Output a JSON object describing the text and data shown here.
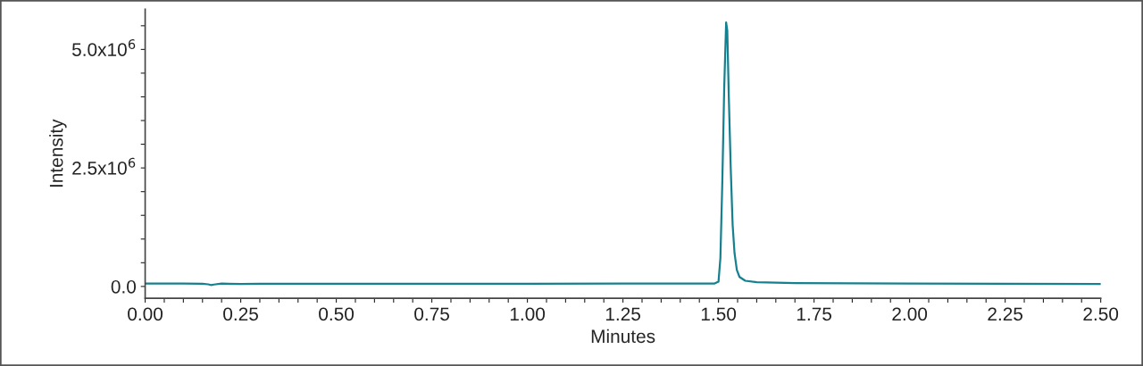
{
  "chart_data": {
    "type": "line",
    "xlabel": "Minutes",
    "ylabel": "Intensity",
    "x": [
      0.0,
      0.05,
      0.1,
      0.15,
      0.165,
      0.172,
      0.18,
      0.2,
      0.25,
      0.3,
      0.5,
      0.75,
      1.0,
      1.25,
      1.45,
      1.49,
      1.5,
      1.505,
      1.51,
      1.515,
      1.52,
      1.523,
      1.527,
      1.532,
      1.537,
      1.542,
      1.548,
      1.555,
      1.57,
      1.6,
      1.7,
      2.0,
      2.25,
      2.5
    ],
    "series": [
      {
        "color": "#15808f",
        "values": [
          60000,
          60000,
          60000,
          58000,
          45000,
          30000,
          40000,
          60000,
          50000,
          55000,
          58000,
          58000,
          58000,
          60000,
          60000,
          62000,
          100000,
          600000,
          2200000,
          4200000,
          5570000,
          5400000,
          4000000,
          2500000,
          1300000,
          700000,
          350000,
          200000,
          120000,
          90000,
          70000,
          60000,
          55000,
          50000
        ]
      }
    ],
    "xlim": [
      0.0,
      2.5
    ],
    "ylim": [
      -250000,
      5850000
    ],
    "xticks": [
      {
        "value": 0.0,
        "label": "0.00"
      },
      {
        "value": 0.05,
        "label": null
      },
      {
        "value": 0.1,
        "label": null
      },
      {
        "value": 0.15,
        "label": null
      },
      {
        "value": 0.2,
        "label": null
      },
      {
        "value": 0.25,
        "label": "0.25"
      },
      {
        "value": 0.3,
        "label": null
      },
      {
        "value": 0.35,
        "label": null
      },
      {
        "value": 0.4,
        "label": null
      },
      {
        "value": 0.45,
        "label": null
      },
      {
        "value": 0.5,
        "label": "0.50"
      },
      {
        "value": 0.55,
        "label": null
      },
      {
        "value": 0.6,
        "label": null
      },
      {
        "value": 0.65,
        "label": null
      },
      {
        "value": 0.7,
        "label": null
      },
      {
        "value": 0.75,
        "label": "0.75"
      },
      {
        "value": 0.8,
        "label": null
      },
      {
        "value": 0.85,
        "label": null
      },
      {
        "value": 0.9,
        "label": null
      },
      {
        "value": 0.95,
        "label": null
      },
      {
        "value": 1.0,
        "label": "1.00"
      },
      {
        "value": 1.05,
        "label": null
      },
      {
        "value": 1.1,
        "label": null
      },
      {
        "value": 1.15,
        "label": null
      },
      {
        "value": 1.2,
        "label": null
      },
      {
        "value": 1.25,
        "label": "1.25"
      },
      {
        "value": 1.3,
        "label": null
      },
      {
        "value": 1.35,
        "label": null
      },
      {
        "value": 1.4,
        "label": null
      },
      {
        "value": 1.45,
        "label": null
      },
      {
        "value": 1.5,
        "label": "1.50"
      },
      {
        "value": 1.55,
        "label": null
      },
      {
        "value": 1.6,
        "label": null
      },
      {
        "value": 1.65,
        "label": null
      },
      {
        "value": 1.7,
        "label": null
      },
      {
        "value": 1.75,
        "label": "1.75"
      },
      {
        "value": 1.8,
        "label": null
      },
      {
        "value": 1.85,
        "label": null
      },
      {
        "value": 1.9,
        "label": null
      },
      {
        "value": 1.95,
        "label": null
      },
      {
        "value": 2.0,
        "label": "2.00"
      },
      {
        "value": 2.05,
        "label": null
      },
      {
        "value": 2.1,
        "label": null
      },
      {
        "value": 2.15,
        "label": null
      },
      {
        "value": 2.2,
        "label": null
      },
      {
        "value": 2.25,
        "label": "2.25"
      },
      {
        "value": 2.3,
        "label": null
      },
      {
        "value": 2.35,
        "label": null
      },
      {
        "value": 2.4,
        "label": null
      },
      {
        "value": 2.45,
        "label": null
      },
      {
        "value": 2.5,
        "label": "2.50"
      }
    ],
    "yticks": [
      {
        "value": 0,
        "label": "0.0"
      },
      {
        "value": 500000,
        "label": null
      },
      {
        "value": 1000000,
        "label": null
      },
      {
        "value": 1500000,
        "label": null
      },
      {
        "value": 2000000,
        "label": null
      },
      {
        "value": 2500000,
        "label": "2.5x10$^{6}$"
      },
      {
        "value": 3000000,
        "label": null
      },
      {
        "value": 3500000,
        "label": null
      },
      {
        "value": 4000000,
        "label": null
      },
      {
        "value": 4500000,
        "label": null
      },
      {
        "value": 5000000,
        "label": "5.0x10$^{6}$"
      },
      {
        "value": 5500000,
        "label": null
      }
    ],
    "grid": false,
    "legend": false,
    "marker": "none",
    "line_style": "solid"
  }
}
